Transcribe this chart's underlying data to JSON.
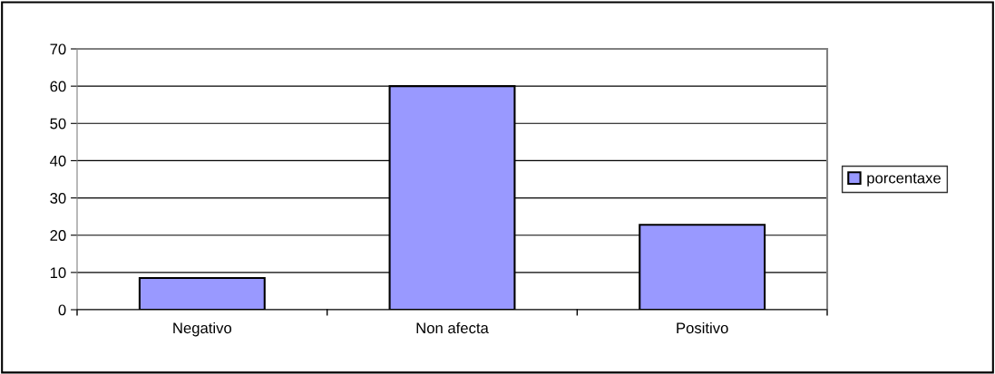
{
  "chart_data": {
    "type": "bar",
    "categories": [
      "Negativo",
      "Non afecta",
      "Positivo"
    ],
    "series": [
      {
        "name": "porcentaxe",
        "color": "#9999ff",
        "values": [
          8.5,
          60,
          22.8
        ]
      }
    ],
    "ylim": [
      0,
      70
    ],
    "yticks": [
      0,
      10,
      20,
      30,
      40,
      50,
      60,
      70
    ],
    "grid": "y",
    "legend": "right"
  }
}
